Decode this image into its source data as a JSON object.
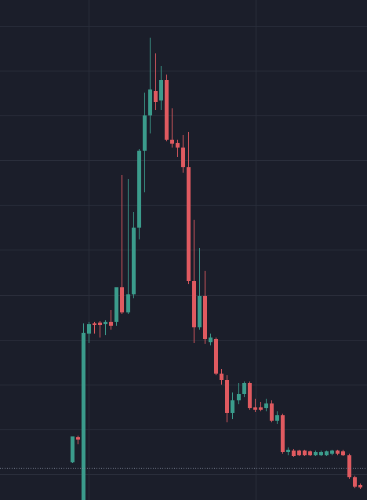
{
  "chart_data": {
    "type": "candlestick",
    "ylim": [
      0,
      637
    ],
    "ygrid": [
      604,
      547,
      490,
      433,
      376,
      319,
      261,
      204,
      147,
      90,
      33
    ],
    "grid": true,
    "up_color": "#3b9c8c",
    "down_color": "#e05a60",
    "grid_color": "#2a2e3b",
    "price_line": 41,
    "price_line_color": "#8a93a6",
    "open": [
      48,
      80,
      0,
      212,
      225,
      226,
      224,
      227,
      227,
      271,
      239,
      262,
      347,
      445,
      490,
      521,
      509,
      535,
      459,
      455,
      449,
      424,
      279,
      220,
      260,
      201,
      205,
      161,
      153,
      111,
      127,
      135,
      149,
      118,
      118,
      117,
      123,
      101,
      108,
      61,
      63,
      63,
      63,
      62,
      57,
      57,
      57,
      59,
      63,
      62,
      57,
      29,
      19
    ],
    "high": [
      81,
      82,
      225,
      227,
      227,
      228,
      229,
      242,
      271,
      414,
      409,
      367,
      447,
      519,
      589,
      569,
      553,
      542,
      499,
      459,
      465,
      469,
      357,
      321,
      292,
      212,
      207,
      167,
      159,
      137,
      149,
      151,
      151,
      129,
      125,
      129,
      127,
      113,
      110,
      67,
      65,
      64,
      64,
      63,
      63,
      63,
      63,
      64,
      64,
      64,
      59,
      31,
      21
    ],
    "low": [
      47,
      71,
      0,
      200,
      212,
      207,
      210,
      217,
      222,
      237,
      237,
      257,
      332,
      392,
      467,
      497,
      497,
      457,
      449,
      437,
      417,
      275,
      200,
      217,
      199,
      197,
      159,
      147,
      99,
      103,
      122,
      131,
      115,
      112,
      113,
      113,
      99,
      97,
      59,
      57,
      55,
      56,
      56,
      56,
      56,
      56,
      56,
      57,
      57,
      56,
      27,
      15,
      14
    ],
    "close": [
      81,
      77,
      213,
      224,
      223,
      223,
      227,
      222,
      271,
      239,
      262,
      347,
      445,
      490,
      523,
      507,
      535,
      459,
      454,
      449,
      424,
      279,
      220,
      260,
      205,
      207,
      161,
      153,
      111,
      127,
      135,
      149,
      117,
      115,
      115,
      123,
      101,
      108,
      61,
      64,
      56,
      57,
      57,
      57,
      61,
      61,
      62,
      63,
      59,
      57,
      29,
      17,
      16
    ]
  }
}
